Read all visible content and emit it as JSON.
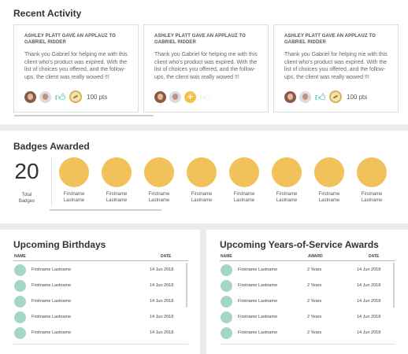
{
  "activity": {
    "title": "Recent Activity",
    "cards": [
      {
        "title_line1": "ASHLEY PLATT GAVE AN APPLAUZ TO",
        "title_line2": "GABRIEL RIDDER",
        "message": "Thank you Gabriel for helping me with this client who's product was expired. With the list of choices you offered, and the follow-ups, the client was really wowed !!!",
        "icons": [
          "avatar-woman",
          "avatar-man",
          "thumbs-up-icon",
          "medal-icon"
        ],
        "points": "100 pts"
      },
      {
        "title_line1": "ASHLEY PLATT GAVE AN APPLAUZ TO",
        "title_line2": "GABRIEL RIDDER",
        "message": "Thank you Gabriel for helping me with this client who's product was expired. With the list of choices you offered, and the follow-ups, the client was really wowed !!!",
        "icons": [
          "avatar-woman",
          "avatar-man",
          "plus-icon",
          "thumbs-up-outline-icon"
        ],
        "points": ""
      },
      {
        "title_line1": "ASHLEY PLATT GAVE AN APPLAUZ TO",
        "title_line2": "GABRIEL RIDDER",
        "message": "Thank you Gabriel for helping me with this client who's product was expired. With the list of choices you offered, and the follow-ups, the client was really wowed !!!",
        "icons": [
          "avatar-woman",
          "avatar-man",
          "thumbs-up-icon",
          "medal-icon"
        ],
        "points": "100 pts"
      }
    ]
  },
  "badges": {
    "title": "Badges Awarded",
    "count": "20",
    "count_label_line1": "Total",
    "count_label_line2": "Badges",
    "color": "#f2c25a",
    "items": [
      {
        "first": "Firstname",
        "last": "Lastname"
      },
      {
        "first": "Firstname",
        "last": "Lastname"
      },
      {
        "first": "Firstname",
        "last": "Lastname"
      },
      {
        "first": "Firstname",
        "last": "Lastname"
      },
      {
        "first": "Firstname",
        "last": "Lastname"
      },
      {
        "first": "Firstname",
        "last": "Lastname"
      },
      {
        "first": "Firstname",
        "last": "Lastname"
      },
      {
        "first": "Firstname",
        "last": "Lastname"
      }
    ]
  },
  "birthdays": {
    "title": "Upcoming Birthdays",
    "col_name": "NAME",
    "col_date": "DATE",
    "rows": [
      {
        "name": "Firstname Lastname",
        "date": "14 Jun 2018"
      },
      {
        "name": "Firstname Lastname",
        "date": "14 Jun 2018"
      },
      {
        "name": "Firstname Lastname",
        "date": "14 Jun 2018"
      },
      {
        "name": "Firstname Lastname",
        "date": "14 Jun 2018"
      },
      {
        "name": "Firstname Lastname",
        "date": "14 Jun 2018"
      }
    ]
  },
  "service": {
    "title": "Upcoming Years-of-Service Awards",
    "col_name": "NAME",
    "col_award": "AWARD",
    "col_date": "DATE",
    "rows": [
      {
        "name": "Firstname Lastname",
        "award": "2 Years",
        "date": "14 Jun 2018"
      },
      {
        "name": "Firstname Lastname",
        "award": "2 Years",
        "date": "14 Jun 2018"
      },
      {
        "name": "Firstname Lastname",
        "award": "2 Years",
        "date": "14 Jun 2018"
      },
      {
        "name": "Firstname Lastname",
        "award": "2 Years",
        "date": "14 Jun 2018"
      },
      {
        "name": "Firstname Lastname",
        "award": "2 Years",
        "date": "14 Jun 2018"
      }
    ]
  }
}
